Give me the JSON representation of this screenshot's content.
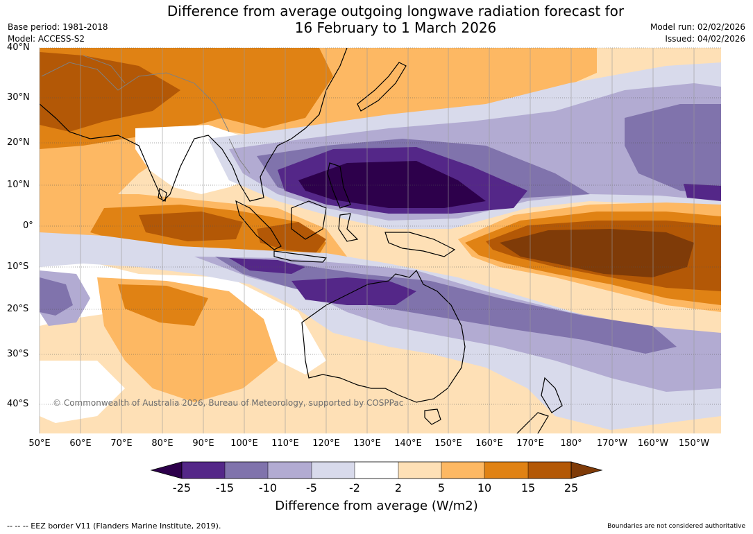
{
  "title": {
    "line1": "Difference from average outgoing longwave radiation forecast for",
    "line2": "16 February to 1 March 2026"
  },
  "meta": {
    "base_period": "Base period: 1981-2018",
    "model": "Model: ACCESS-S2",
    "model_run": "Model run: 02/02/2026",
    "issued": "Issued: 04/02/2026"
  },
  "map": {
    "lat_labels": [
      "40°N",
      "30°N",
      "20°N",
      "10°N",
      "0°",
      "10°S",
      "20°S",
      "30°S",
      "40°S"
    ],
    "lon_labels": [
      "50°E",
      "60°E",
      "70°E",
      "80°E",
      "90°E",
      "100°E",
      "110°E",
      "120°E",
      "130°E",
      "140°E",
      "150°E",
      "160°E",
      "170°E",
      "180°",
      "170°W",
      "160°W",
      "150°W"
    ],
    "copyright": "© Commonwealth of Australia 2026, Bureau of Meteorology, supported by COSPPac"
  },
  "colorbar": {
    "colors": [
      "#2d004b",
      "#542788",
      "#8073ac",
      "#b2abd2",
      "#d8daeb",
      "#ffffff",
      "#fee0b6",
      "#fdb863",
      "#e08214",
      "#b35806",
      "#7f3b08"
    ],
    "ticks": [
      "-25",
      "-15",
      "-10",
      "-5",
      "-2",
      "2",
      "5",
      "10",
      "15",
      "25"
    ],
    "label": "Difference from average (W/m2)"
  },
  "footer": {
    "eez": "--  --  -- EEZ border V11 (Flanders Marine Institute, 2019).",
    "boundaries": "Boundaries are not considered authoritative"
  }
}
